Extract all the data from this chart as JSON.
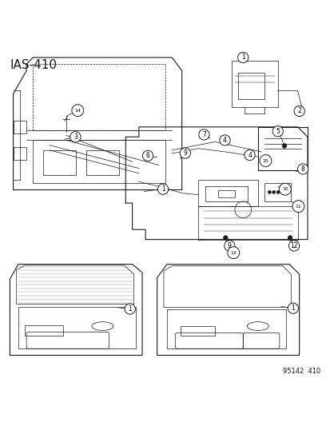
{
  "title": "IAS-410",
  "watermark": "95142  410",
  "bg_color": "#ffffff",
  "fg_color": "#1a1a1a",
  "title_fontsize": 11,
  "label_fontsize": 7,
  "small_fontsize": 6
}
